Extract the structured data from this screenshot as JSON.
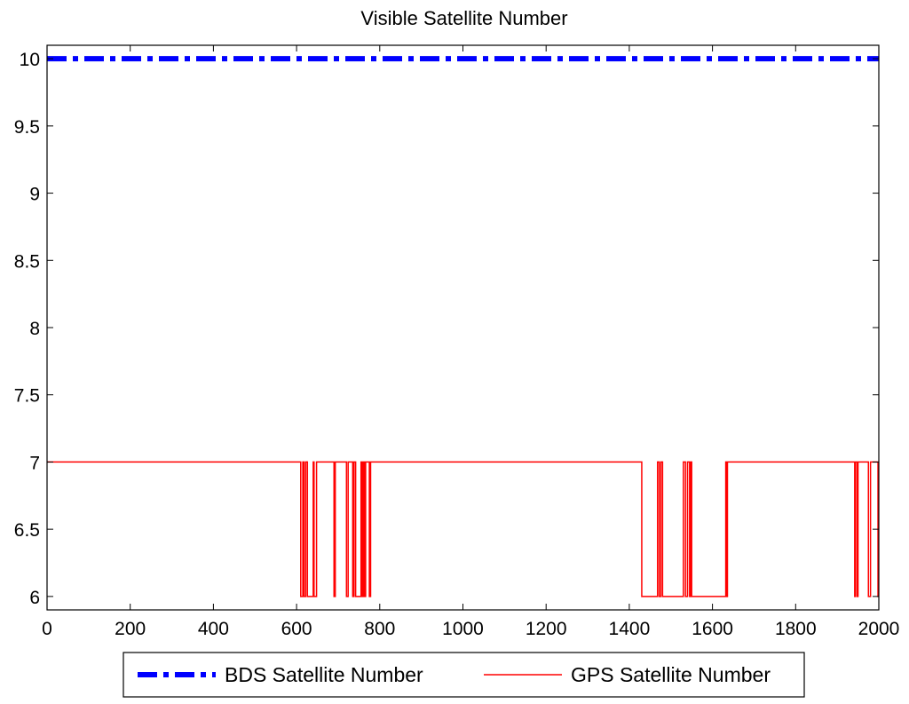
{
  "chart_data": {
    "type": "line",
    "title": "Visible Satellite Number",
    "xlabel": "",
    "ylabel": "",
    "xlim": [
      0,
      2000
    ],
    "ylim": [
      5.9,
      10.1
    ],
    "x_ticks": [
      0,
      200,
      400,
      600,
      800,
      1000,
      1200,
      1400,
      1600,
      1800,
      2000
    ],
    "x_tick_labels": [
      "0",
      "200",
      "400",
      "600",
      "800",
      "1000",
      "1200",
      "1400",
      "1600",
      "1800",
      "2000"
    ],
    "y_ticks": [
      6,
      6.5,
      7,
      7.5,
      8,
      8.5,
      9,
      9.5,
      10
    ],
    "y_tick_labels": [
      "6",
      "6.5",
      "7",
      "7.5",
      "8",
      "8.5",
      "9",
      "9.5",
      "10"
    ],
    "grid": false,
    "legend": {
      "placement": "bottom-outside",
      "orientation": "horizontal"
    },
    "series": [
      {
        "name": "BDS Satellite Number",
        "color": "#0000ff",
        "style": "dash-dot-thick",
        "x": [
          0,
          2000
        ],
        "y": [
          10,
          10
        ]
      },
      {
        "name": "GPS Satellite Number",
        "color": "#ff0000",
        "style": "solid",
        "x": [
          0,
          610,
          610,
          615,
          615,
          618,
          618,
          622,
          622,
          626,
          626,
          640,
          640,
          642,
          642,
          648,
          648,
          690,
          690,
          693,
          693,
          720,
          720,
          724,
          724,
          735,
          735,
          738,
          738,
          742,
          742,
          755,
          755,
          757,
          757,
          760,
          760,
          763,
          763,
          766,
          766,
          775,
          775,
          778,
          778,
          1430,
          1430,
          1468,
          1468,
          1472,
          1472,
          1476,
          1476,
          1480,
          1480,
          1530,
          1530,
          1535,
          1535,
          1540,
          1540,
          1545,
          1545,
          1548,
          1548,
          1550,
          1550,
          1632,
          1632,
          1634,
          1634,
          1636,
          1636,
          1942,
          1942,
          1944,
          1944,
          1948,
          1948,
          1950,
          1950,
          1975,
          1975,
          1980,
          1980,
          1998,
          1998,
          2000
        ],
        "y": [
          7,
          7,
          6,
          6,
          7,
          7,
          6,
          6,
          7,
          7,
          6,
          6,
          7,
          7,
          6,
          6,
          7,
          7,
          6,
          6,
          7,
          7,
          6,
          6,
          7,
          7,
          6,
          6,
          7,
          7,
          6,
          6,
          7,
          7,
          6,
          6,
          7,
          7,
          6,
          6,
          7,
          7,
          6,
          6,
          7,
          7,
          6,
          6,
          7,
          7,
          6,
          6,
          7,
          7,
          6,
          6,
          7,
          7,
          6,
          6,
          7,
          7,
          6,
          6,
          7,
          7,
          6,
          6,
          7,
          7,
          6,
          6,
          7,
          7,
          6,
          6,
          7,
          7,
          6,
          6,
          7,
          7,
          6,
          6,
          7,
          7,
          6,
          6
        ]
      }
    ]
  }
}
